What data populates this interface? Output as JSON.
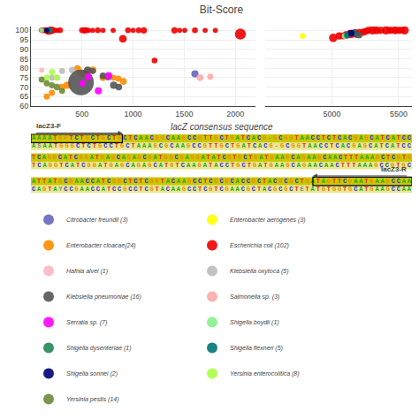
{
  "chart_data": [
    {
      "type": "scatter",
      "title": "Bit-Score",
      "marker": "circle",
      "grid": true,
      "legend": "bottom",
      "xlim": [
        0,
        2200
      ],
      "xticks": [
        500,
        1000,
        1500,
        2000
      ],
      "x2lim": [
        4500,
        5600
      ],
      "x2ticks": [
        5000,
        5500
      ],
      "ylim": [
        60,
        102
      ],
      "yticks": [
        60,
        65,
        70,
        75,
        80,
        85,
        90,
        95,
        100
      ],
      "series": [
        {
          "name": "Citrobacter freundii (3)",
          "color": "#6666bb",
          "x": [
            1605
          ],
          "values": [
            77
          ],
          "size": [
            28
          ]
        },
        {
          "name": "Enterobacter aerogenes (3)",
          "color": "#ffff00",
          "x": [
            4780
          ],
          "values": [
            97
          ],
          "size": [
            18
          ]
        },
        {
          "name": "Enterobacter cloacae(24)",
          "color": "#ff8c00",
          "x": [
            155,
            205,
            305,
            355,
            455,
            505,
            555,
            605,
            705,
            805,
            855,
            905
          ],
          "values": [
            65,
            67,
            70,
            71,
            79.5,
            77,
            78.5,
            79,
            75,
            75,
            74.5,
            73
          ],
          "size": [
            20,
            20,
            24,
            28,
            32,
            32,
            24,
            28,
            24,
            20,
            20,
            24
          ]
        },
        {
          "name": "Escherichia coli (102)",
          "color": "#ee0000",
          "x": [
            100,
            115,
            130,
            150,
            170,
            195,
            215,
            235,
            255,
            285,
            500,
            525,
            545,
            565,
            605,
            655,
            705,
            805,
            900,
            950,
            1000,
            1055,
            1105,
            1210,
            1405,
            1455,
            1505,
            1605,
            1705,
            1805,
            2050,
            5010,
            5055,
            5085,
            5105,
            5135,
            5155,
            5175,
            5205,
            5235,
            5255,
            5275,
            5305,
            5335,
            5365,
            5405,
            5435,
            5455,
            5475,
            5505,
            5525,
            5545
          ],
          "values": [
            100,
            100,
            100,
            100,
            99.5,
            100,
            100,
            100,
            100,
            100,
            100,
            100,
            100,
            100,
            100,
            100,
            100,
            100,
            95.5,
            100,
            100,
            100,
            100,
            84,
            100,
            100,
            100,
            100,
            100,
            100,
            98,
            96,
            97,
            97,
            97.5,
            98,
            98,
            98.5,
            99,
            99,
            99.5,
            100,
            100,
            100,
            100,
            100,
            100,
            100,
            100,
            100,
            100,
            100
          ],
          "size": [
            12,
            18,
            14,
            22,
            28,
            35,
            20,
            14,
            14,
            18,
            18,
            22,
            18,
            14,
            14,
            18,
            14,
            14,
            32,
            18,
            14,
            18,
            22,
            18,
            22,
            14,
            14,
            18,
            14,
            14,
            65,
            38,
            28,
            24,
            32,
            38,
            28,
            32,
            24,
            28,
            24,
            28,
            38,
            32,
            28,
            38,
            28,
            24,
            32,
            28,
            24,
            38
          ]
        },
        {
          "name": "Hafnia alvei (1)",
          "color": "#ffb6c1",
          "x": [
            105
          ],
          "values": [
            79
          ],
          "size": [
            14
          ]
        },
        {
          "name": "Klebsiella oxytoca (5)",
          "color": "#bbbbbb",
          "x": [
            205,
            255,
            305,
            405
          ],
          "values": [
            75,
            75,
            78.5,
            79
          ],
          "size": [
            20,
            20,
            20,
            24
          ]
        },
        {
          "name": "Klebsiella pneumoniae (16)",
          "color": "#555555",
          "x": [
            490,
            555,
            605,
            705,
            755,
            810,
            860,
            5185,
            5205
          ],
          "values": [
            72.5,
            79,
            78.5,
            76,
            75.5,
            71,
            70,
            97.5,
            97.5
          ],
          "size": [
            350,
            28,
            20,
            24,
            28,
            28,
            24,
            18,
            22
          ]
        },
        {
          "name": "Salmonella sp. (3)",
          "color": "#ffaaaa",
          "x": [
            1655,
            1755
          ],
          "values": [
            75,
            75.5
          ],
          "size": [
            24,
            20
          ]
        },
        {
          "name": "Serratia sp. (7)",
          "color": "#ff00ff",
          "x": [
            505,
            560,
            660,
            760
          ],
          "values": [
            72,
            75.5,
            68,
            76
          ],
          "size": [
            24,
            28,
            28,
            28
          ]
        },
        {
          "name": "Shigella boydii (1)",
          "color": "#88ee88",
          "x": [
            105,
            5095
          ],
          "values": [
            100,
            97
          ],
          "size": [
            12,
            18
          ]
        },
        {
          "name": "Shigella dysenteriae (1)",
          "color": "#228855",
          "x": [
            190,
            5125
          ],
          "values": [
            100,
            98
          ],
          "size": [
            12,
            18
          ]
        },
        {
          "name": "Shigella flexneri (5)",
          "color": "#007777",
          "x": [
            175,
            5115,
            5165
          ],
          "values": [
            100,
            97.5,
            99
          ],
          "size": [
            18,
            22,
            18
          ]
        },
        {
          "name": "Shigella sonnei (2)",
          "color": "#000077",
          "x": [
            155,
            5145
          ],
          "values": [
            100,
            98.5
          ],
          "size": [
            14,
            22
          ]
        },
        {
          "name": "Yersinia enterocolitica (8)",
          "color": "#aaff44",
          "x": [
            155,
            205,
            255
          ],
          "values": [
            75,
            78,
            75
          ],
          "size": [
            20,
            20,
            20
          ]
        },
        {
          "name": "Yersinia pestis (14)",
          "color": "#6b8c3a",
          "x": [
            105,
            155,
            205,
            255,
            305
          ],
          "values": [
            74,
            72,
            71,
            70,
            68
          ],
          "size": [
            20,
            20,
            20,
            24,
            20
          ]
        }
      ]
    },
    {
      "type": "alignment",
      "title": "lacZ consensus sequence",
      "annotations": [
        "lacZ3-F",
        "lacZ3-R"
      ],
      "series": [
        {
          "color": "#c8c800",
          "values": [
            "AAAATGGTCTGCTGCTGCTCAACGGCAAGCCGTTGCTGATCACG-GCGGTAACCTCTCACGAGCATCATCC",
            "TCAGGCATCGGATGAGCAGAGCGATGGCGAGGATATCGTGCTGATGAAGCAGAAGCAACTTTAAAGCTCGTG",
            "ATTATGCGAACCATCGGCTCTCGGTACAAGCCTCGCGCACCGCTACGCGCTGATAGTTCGAATGAAGCCAA"
          ]
        },
        {
          "color": "#e8e890",
          "values": [
            "ASAATGGGCTCTGCCTGCTAAAGCGCAAGCCGTTGCTGATCACG-GCGGTAACCTCACGAGCATCATCC",
            "TCAGGTCATCGGATGAGCAGAGCATGTCAAGATACCTGCTGATGAAGCAGAACAACTTTAAAGCCGTGC",
            "CAGTAYCCGAACCATCCGCCTCGTACAAGCCTCGTCGAACGCTACGCGCTETATGTGGTGCATGAAGCCAA"
          ]
        }
      ],
      "colors": {
        "A": "#22aa22",
        "T": "#ee2222",
        "G": "#ee8800",
        "C": "#2222ee",
        "-": "#888888",
        "S": "#888888",
        "Y": "#888888",
        "E": "#888888"
      }
    }
  ]
}
